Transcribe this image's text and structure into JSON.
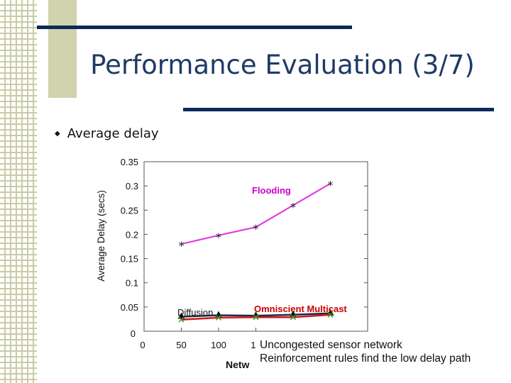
{
  "slide": {
    "title": "Performance Evaluation (3/7)",
    "bullet": "Average delay",
    "notes": [
      "Uncongested sensor network",
      "Reinforcement rules find the low delay path"
    ]
  },
  "colors": {
    "title": "#1f3a66",
    "accent_bar": "#0b2a5a",
    "flooding": "#e040e0",
    "flooding_label": "#cc00cc",
    "omniscient_label": "#cc0000",
    "diffusion_line": "#1a2a4a",
    "omniscient_line": "#cc1a1a"
  },
  "chart_data": {
    "type": "line",
    "ylabel": "Average Delay (secs)",
    "xlabel_visible": "Netw",
    "ylim": [
      0,
      0.35
    ],
    "xlim": [
      0,
      300
    ],
    "y_ticks": [
      "0.35",
      "0.3",
      "0.25",
      "0.2",
      "0.15",
      "0.1",
      "0.05",
      "0"
    ],
    "x_ticks": [
      "0",
      "50",
      "100",
      "1"
    ],
    "series": [
      {
        "name": "Flooding",
        "color": "#e040e0",
        "marker": "*",
        "x": [
          50,
          100,
          150,
          200,
          250
        ],
        "y": [
          0.18,
          0.198,
          0.215,
          0.26,
          0.305
        ]
      },
      {
        "name": "Diffusion",
        "color": "#1a2a4a",
        "marker": "triangle",
        "x": [
          50,
          100,
          150,
          200,
          250
        ],
        "y": [
          0.03,
          0.033,
          0.032,
          0.034,
          0.037
        ]
      },
      {
        "name": "Omniscient Multicast",
        "color": "#cc1a1a",
        "marker": "x",
        "x": [
          50,
          100,
          150,
          200,
          250
        ],
        "y": [
          0.024,
          0.028,
          0.029,
          0.029,
          0.034
        ]
      }
    ]
  }
}
